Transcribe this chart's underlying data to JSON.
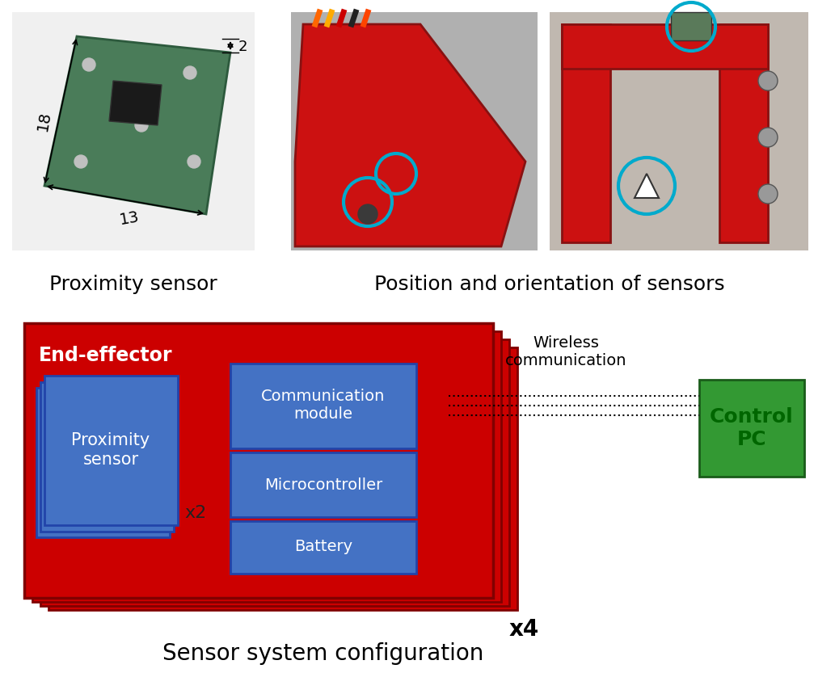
{
  "title_top_left": "Proximity sensor",
  "title_top_right": "Position and orientation of sensors",
  "title_bottom": "Sensor system configuration",
  "wireless_label": "Wireless\ncommunication",
  "end_effector_label": "End-effector",
  "proximity_sensor_label": "Proximity\nsensor",
  "x2_label": "x2",
  "x4_label": "x4",
  "comm_module_label": "Communication\nmodule",
  "microcontroller_label": "Microcontroller",
  "battery_label": "Battery",
  "control_pc_label": "Control\nPC",
  "red_color": "#CC0000",
  "blue_color": "#4472C4",
  "green_color": "#339933",
  "white_color": "#FFFFFF",
  "black_color": "#000000",
  "dim_18": "18",
  "dim_13": "13",
  "dim_2": "2",
  "bg_color": "#FFFFFF"
}
